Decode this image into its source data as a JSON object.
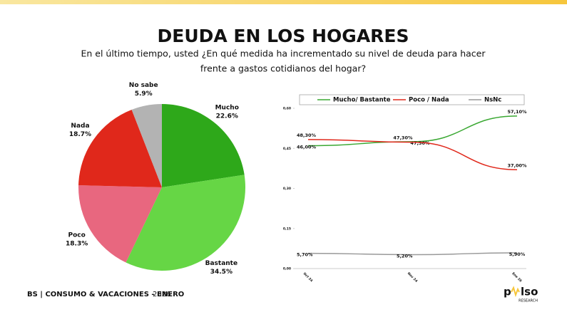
{
  "title": "DEUDA EN LOS HOGARES",
  "subtitle": [
    "En el último tiempo, usted ¿En qué medida ha incrementado su nivel de deuda para hacer",
    "frente a gastos cotidianos del hogar?"
  ],
  "footer": {
    "bold": "BS | CONSUMO & VACACIONES - ENERO",
    "year": "2026"
  },
  "logo": {
    "parts": [
      "p",
      "lso"
    ],
    "tagline": "RESEARCH"
  },
  "chart_data": [
    {
      "type": "pie",
      "categories": [
        "Mucho",
        "Bastante",
        "Poco",
        "Nada",
        "No sabe"
      ],
      "values": [
        22.6,
        34.5,
        18.3,
        18.7,
        5.9
      ],
      "value_labels": [
        "22.6%",
        "34.5%",
        "18.3%",
        "18.7%",
        "5.9%"
      ],
      "colors": [
        "#2ea81a",
        "#66d645",
        "#e8677f",
        "#e0281b",
        "#b3b3b3"
      ]
    },
    {
      "type": "line",
      "categories": [
        "Oct 24",
        "Nov 24",
        "Ene 26"
      ],
      "ylim": [
        0,
        0.6
      ],
      "yticks": [
        {
          "value": 0,
          "label": "0,00"
        },
        {
          "value": 0.15,
          "label": "0,15"
        },
        {
          "value": 0.3,
          "label": "0,30"
        },
        {
          "value": 0.45,
          "label": "0,45"
        },
        {
          "value": 0.6,
          "label": "0,60"
        }
      ],
      "legend": "top",
      "series": [
        {
          "name": "Mucho/ Bastante",
          "color": "#3aa832",
          "values": [
            0.46,
            0.475,
            0.571
          ],
          "value_labels": [
            "46,00%",
            "47,50%",
            "57,10%"
          ]
        },
        {
          "name": "Poco / Nada",
          "color": "#e0281b",
          "values": [
            0.483,
            0.473,
            0.37
          ],
          "value_labels": [
            "48,30%",
            "47,30%",
            "37,00%"
          ]
        },
        {
          "name": "NsNc",
          "color": "#999999",
          "values": [
            0.057,
            0.052,
            0.059
          ],
          "value_labels": [
            "5,70%",
            "5,20%",
            "5,90%"
          ]
        }
      ]
    }
  ]
}
